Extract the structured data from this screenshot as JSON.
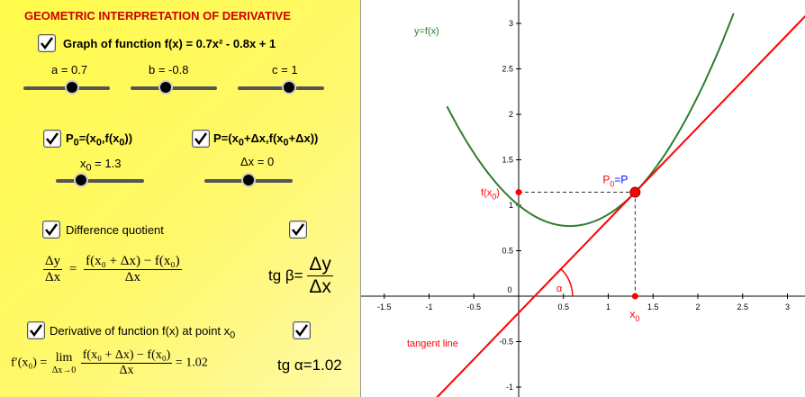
{
  "left_panel": {
    "title": "GEOMETRIC INTERPRETATION OF DERIVATIVE",
    "graph_checkbox": {
      "label": "Graph of function f(x) = 0.7x² - 0.8x + 1",
      "checked": true
    },
    "sliders_abc": [
      {
        "label": "a = 0.7",
        "value": 0.7
      },
      {
        "label": "b = -0.8",
        "value": -0.8
      },
      {
        "label": "c = 1",
        "value": 1
      }
    ],
    "p0_checkbox": {
      "label": "P",
      "sub": "0",
      "tail": "=(x",
      "sub2": "0",
      "tail2": ",f(x",
      "sub3": "0",
      "tail3": "))",
      "checked": true
    },
    "p_checkbox": {
      "label": "P=(x",
      "sub": "0",
      "tail": "+Δx,f(x",
      "sub2": "0",
      "tail2": "+Δx))",
      "checked": true
    },
    "x0_slider": {
      "label": "x",
      "sub": "0",
      "tail": " = 1.3",
      "value": 1.3
    },
    "dx_slider": {
      "label": "Δx = 0",
      "value": 0
    },
    "difference_quotient": {
      "label": "Difference quotient",
      "checked": true
    },
    "tg_beta_checkbox": {
      "checked": true
    },
    "dq_formula": {
      "lhs_num": "Δy",
      "lhs_den": "Δx",
      "eq": "=",
      "rhs_num": "f(x₀ + Δx) − f(x₀)",
      "rhs_den": "Δx"
    },
    "tg_beta": {
      "label": "tg β=",
      "num": "Δy",
      "den": "Δx"
    },
    "derivative_checkbox": {
      "label": "Derivative of function f(x) at point x",
      "sub": "0",
      "checked": true
    },
    "tg_alpha_checkbox": {
      "checked": true
    },
    "derivative_formula": {
      "lhs": "f′(x₀) =",
      "lim": "lim",
      "lim_sub": "Δx→0",
      "num": "f(x₀ + Δx) − f(x₀)",
      "den": "Δx",
      "result": "= 1.02"
    },
    "tg_alpha": "tg α=1.02"
  },
  "graph": {
    "curve_label": "y=f(x)",
    "tangent_label": "tangent line",
    "point_label_p": "P",
    "point_label_sub": "0",
    "point_label_eq": "=",
    "point_label_p2": "P",
    "fx0_label": "f(x",
    "fx0_sub": "0",
    "fx0_tail": ")",
    "x0_label": "x",
    "x0_sub": "0",
    "alpha_label": "α",
    "x_ticks": [
      "-1.5",
      "-1",
      "-0.5",
      "0",
      "0.5",
      "1",
      "1.5",
      "2",
      "2.5",
      "3"
    ],
    "y_ticks": [
      "-1",
      "-0.5",
      "0.5",
      "1",
      "1.5",
      "2",
      "2.5",
      "3"
    ],
    "colors": {
      "curve": "#2e7d32",
      "tangent": "#ff0000",
      "point": "#ff0000",
      "p_label": "#0000ff"
    }
  }
}
